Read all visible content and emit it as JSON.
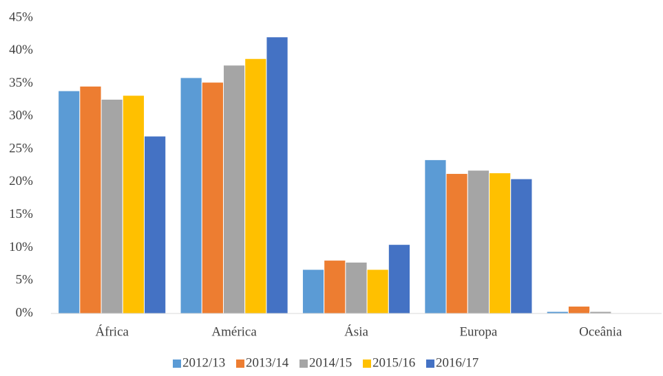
{
  "chart_data": {
    "type": "bar",
    "categories": [
      "África",
      "América",
      "Ásia",
      "Europa",
      "Oceânia"
    ],
    "series": [
      {
        "name": "2012/13",
        "color": "#5b9bd5",
        "values": [
          33.9,
          35.9,
          6.7,
          23.4,
          0.3
        ]
      },
      {
        "name": "2013/14",
        "color": "#ed7d31",
        "values": [
          34.6,
          35.2,
          8.1,
          21.3,
          1.1
        ]
      },
      {
        "name": "2014/15",
        "color": "#a5a5a5",
        "values": [
          32.6,
          37.8,
          7.8,
          21.8,
          0.3
        ]
      },
      {
        "name": "2015/16",
        "color": "#ffc000",
        "values": [
          33.2,
          38.8,
          6.7,
          21.4,
          0.1
        ]
      },
      {
        "name": "2016/17",
        "color": "#4472c4",
        "values": [
          27.0,
          42.1,
          10.5,
          20.5,
          0.1
        ]
      }
    ],
    "ylim": [
      0,
      45
    ],
    "yticks": [
      {
        "value": 0,
        "label": "0%"
      },
      {
        "value": 5,
        "label": "5%"
      },
      {
        "value": 10,
        "label": "10%"
      },
      {
        "value": 15,
        "label": "15%"
      },
      {
        "value": 20,
        "label": "20%"
      },
      {
        "value": 25,
        "label": "25%"
      },
      {
        "value": 30,
        "label": "30%"
      },
      {
        "value": 35,
        "label": "35%"
      },
      {
        "value": 40,
        "label": "40%"
      },
      {
        "value": 45,
        "label": "45%"
      }
    ],
    "grid": false,
    "legend": "bottom"
  }
}
